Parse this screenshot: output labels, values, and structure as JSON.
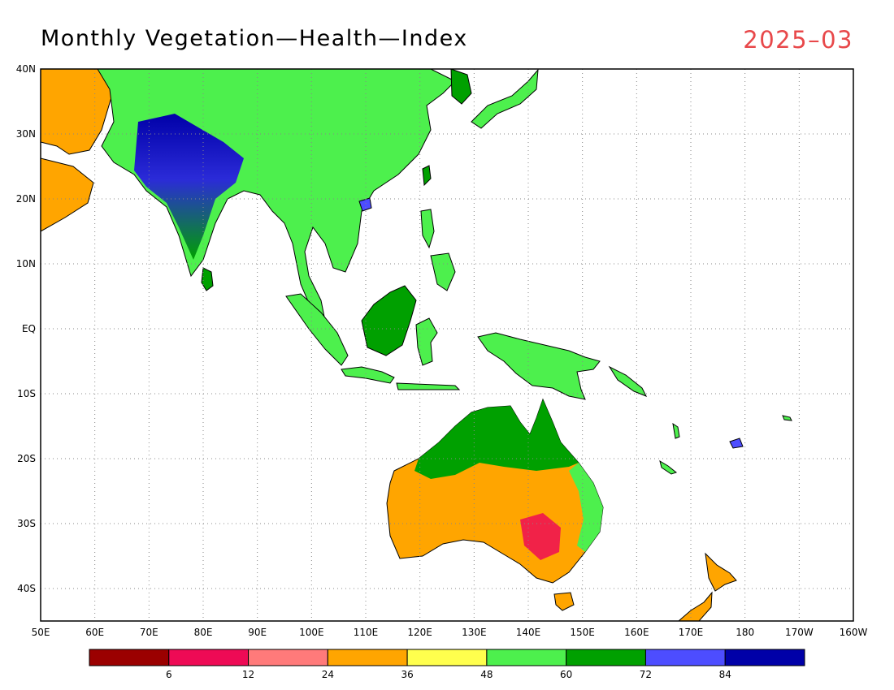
{
  "title": "Monthly Vegetation—Health—Index",
  "date": "2025–03",
  "map": {
    "lon_min": 50,
    "lon_max": 200,
    "lat_min": -45,
    "lat_max": 40,
    "lon_ticks": [
      {
        "value": 50,
        "label": "50E"
      },
      {
        "value": 60,
        "label": "60E"
      },
      {
        "value": 70,
        "label": "70E"
      },
      {
        "value": 80,
        "label": "80E"
      },
      {
        "value": 90,
        "label": "90E"
      },
      {
        "value": 100,
        "label": "100E"
      },
      {
        "value": 110,
        "label": "110E"
      },
      {
        "value": 120,
        "label": "120E"
      },
      {
        "value": 130,
        "label": "130E"
      },
      {
        "value": 140,
        "label": "140E"
      },
      {
        "value": 150,
        "label": "150E"
      },
      {
        "value": 160,
        "label": "160E"
      },
      {
        "value": 170,
        "label": "170E"
      },
      {
        "value": 180,
        "label": "180"
      },
      {
        "value": 190,
        "label": "170W"
      },
      {
        "value": 200,
        "label": "160W"
      }
    ],
    "lat_ticks": [
      {
        "value": 40,
        "label": "40N"
      },
      {
        "value": 30,
        "label": "30N"
      },
      {
        "value": 20,
        "label": "20N"
      },
      {
        "value": 10,
        "label": "10N"
      },
      {
        "value": 0,
        "label": "EQ"
      },
      {
        "value": -10,
        "label": "10S"
      },
      {
        "value": -20,
        "label": "20S"
      },
      {
        "value": -30,
        "label": "30S"
      },
      {
        "value": -40,
        "label": "40S"
      }
    ],
    "grid": true
  },
  "legend": {
    "colors": [
      "#9b0000",
      "#ee0a55",
      "#ff7a7a",
      "#ffa500",
      "#ffff4d",
      "#4df04d",
      "#00a000",
      "#4d4dff",
      "#0000a8"
    ],
    "labels": [
      "6",
      "12",
      "24",
      "36",
      "48",
      "60",
      "72",
      "84"
    ]
  }
}
